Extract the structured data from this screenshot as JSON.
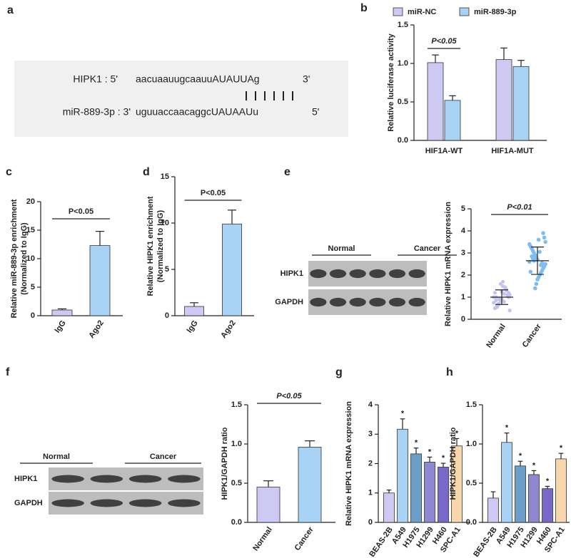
{
  "panel_labels": [
    "a",
    "b",
    "c",
    "d",
    "e",
    "f",
    "g",
    "h"
  ],
  "alignment": {
    "rows": [
      {
        "name": "HIPK1 : 5'",
        "seq": "aacuaauugcaauuAUAUUAg",
        "end": "3'"
      },
      {
        "name": "miR-889-3p : 3'",
        "seq": "uguuaccaacaggcUAUAAUu",
        "end": "5'"
      }
    ]
  },
  "blots": [
    {
      "groups": [
        "Normal",
        "Cancer"
      ],
      "rows": [
        "HIPK1",
        "GAPDH"
      ]
    },
    {
      "groups": [
        "Normal",
        "Cancer"
      ],
      "rows": [
        "HIPK1",
        "GAPDH"
      ]
    }
  ],
  "chart_data": [
    {
      "type": "grouped-bar",
      "categories": [
        "HIF1A-WT",
        "HIF1A-MUT"
      ],
      "series": [
        {
          "name": "miR-NC",
          "color": "#cdc9f2",
          "values": [
            1.01,
            1.05
          ],
          "errors": [
            0.1,
            0.15
          ]
        },
        {
          "name": "miR-889-3p",
          "color": "#a9d3f5",
          "values": [
            0.52,
            0.96
          ],
          "errors": [
            0.06,
            0.08
          ]
        }
      ],
      "ylabel": [
        "Relative luciferase activity"
      ],
      "ylim": [
        0,
        1.5
      ],
      "yticks": [
        {
          "value": 0,
          "label": "0.0"
        },
        0.5,
        {
          "value": 1,
          "label": "1.0"
        },
        1.5
      ],
      "annotation": "P<0.05",
      "annotation_italic": true
    },
    {
      "type": "bar",
      "categories": [
        "IgG",
        "Ago2"
      ],
      "values": [
        1.0,
        12.3
      ],
      "errors": [
        0.2,
        2.5
      ],
      "colors": [
        "#cdc9f2",
        "#a9d3f5"
      ],
      "ylabel": [
        "Relative miR-889-3p enrichment",
        "(Normalized to IgG)"
      ],
      "ylim": [
        0,
        20
      ],
      "yticks": [
        0,
        5,
        10,
        15,
        20
      ],
      "annotation": "P<0.05",
      "annotation_italic": false
    },
    {
      "type": "bar",
      "categories": [
        "IgG",
        "Ago2"
      ],
      "values": [
        1.0,
        9.9
      ],
      "errors": [
        0.4,
        1.5
      ],
      "colors": [
        "#cdc9f2",
        "#a9d3f5"
      ],
      "ylabel": [
        "Relative HIPK1 enrichment",
        "(Normalized to IgG)"
      ],
      "ylim": [
        0,
        15
      ],
      "yticks": [
        0,
        5,
        10,
        15
      ],
      "annotation": "P<0.05",
      "annotation_italic": false
    },
    {
      "type": "dot",
      "categories": [
        "Normal",
        "Cancer"
      ],
      "colors": [
        "#c5c2ee",
        "#7fbdf0"
      ],
      "points": [
        [
          1.0,
          0.9,
          1.1,
          0.8,
          1.2,
          0.95,
          1.05,
          0.7,
          1.3,
          0.6,
          1.4,
          0.85,
          1.15,
          0.5,
          1.5,
          0.75,
          1.25,
          0.4,
          1.6,
          1.0,
          0.9,
          1.1,
          0.65,
          1.35,
          0.55,
          1.45,
          1.0,
          0.8,
          1.2,
          1.7
        ],
        [
          2.6,
          2.7,
          2.5,
          2.8,
          2.4,
          2.9,
          2.3,
          3.0,
          2.2,
          3.1,
          2.1,
          3.2,
          2.0,
          3.3,
          1.9,
          3.4,
          1.8,
          3.5,
          1.6,
          3.7,
          1.4,
          3.9,
          2.65,
          2.55,
          2.75,
          2.45,
          2.85,
          3.05,
          2.15,
          3.6
        ]
      ],
      "means": [
        1.0,
        2.65
      ],
      "sd": [
        0.33,
        0.62
      ],
      "ylabel": [
        "Relative HIPK1 mRNA expression"
      ],
      "ylim": [
        0,
        5
      ],
      "yticks": [
        0,
        1,
        2,
        3,
        4,
        5
      ],
      "annotation": "P<0.01",
      "annotation_italic": true
    },
    {
      "type": "bar",
      "categories": [
        "Normal",
        "Cancer"
      ],
      "values": [
        0.45,
        0.96
      ],
      "errors": [
        0.08,
        0.08
      ],
      "colors": [
        "#cdc9f2",
        "#a9d3f5"
      ],
      "ylabel": [
        "HIPK1/GAPDH ratio"
      ],
      "ylim": [
        0,
        1.5
      ],
      "yticks": [
        {
          "value": 0,
          "label": "0.0"
        },
        0.5,
        {
          "value": 1,
          "label": "1.0"
        },
        1.5
      ],
      "annotation": "P<0.05",
      "annotation_italic": true
    },
    {
      "type": "bar",
      "categories": [
        "BEAS-2B",
        "A549",
        "H1975",
        "H1299",
        "H460",
        "SPC-A1"
      ],
      "values": [
        1.0,
        3.17,
        2.33,
        2.05,
        1.88,
        2.6
      ],
      "errors": [
        0.1,
        0.35,
        0.2,
        0.17,
        0.13,
        0.25
      ],
      "colors": [
        "#cdc9f2",
        "#a9d3f5",
        "#6b9fca",
        "#8d88cf",
        "#7a68c9",
        "#f6d6aa"
      ],
      "stars": [
        null,
        "*",
        "*",
        "*",
        "*",
        "*"
      ],
      "ylabel": [
        "Relative HIPK1 mRNA expression"
      ],
      "ylim": [
        0,
        4
      ],
      "yticks": [
        0,
        1,
        2,
        3,
        4
      ]
    },
    {
      "type": "bar",
      "categories": [
        "BEAS-2B",
        "A549",
        "H1975",
        "H1299",
        "H460",
        "SPC-A1"
      ],
      "values": [
        0.31,
        1.02,
        0.72,
        0.61,
        0.43,
        0.81
      ],
      "errors": [
        0.08,
        0.12,
        0.06,
        0.05,
        0.03,
        0.07
      ],
      "colors": [
        "#cdc9f2",
        "#a9d3f5",
        "#6b9fca",
        "#8d88cf",
        "#7a68c9",
        "#f6d6aa"
      ],
      "stars": [
        null,
        "*",
        "*",
        "*",
        "*",
        "*"
      ],
      "ylabel": [
        "HIPK1/GAPDH ratio"
      ],
      "ylim": [
        0,
        1.5
      ],
      "yticks": [
        {
          "value": 0,
          "label": "0.0"
        },
        0.5,
        {
          "value": 1,
          "label": "1.0"
        },
        1.5
      ]
    }
  ]
}
